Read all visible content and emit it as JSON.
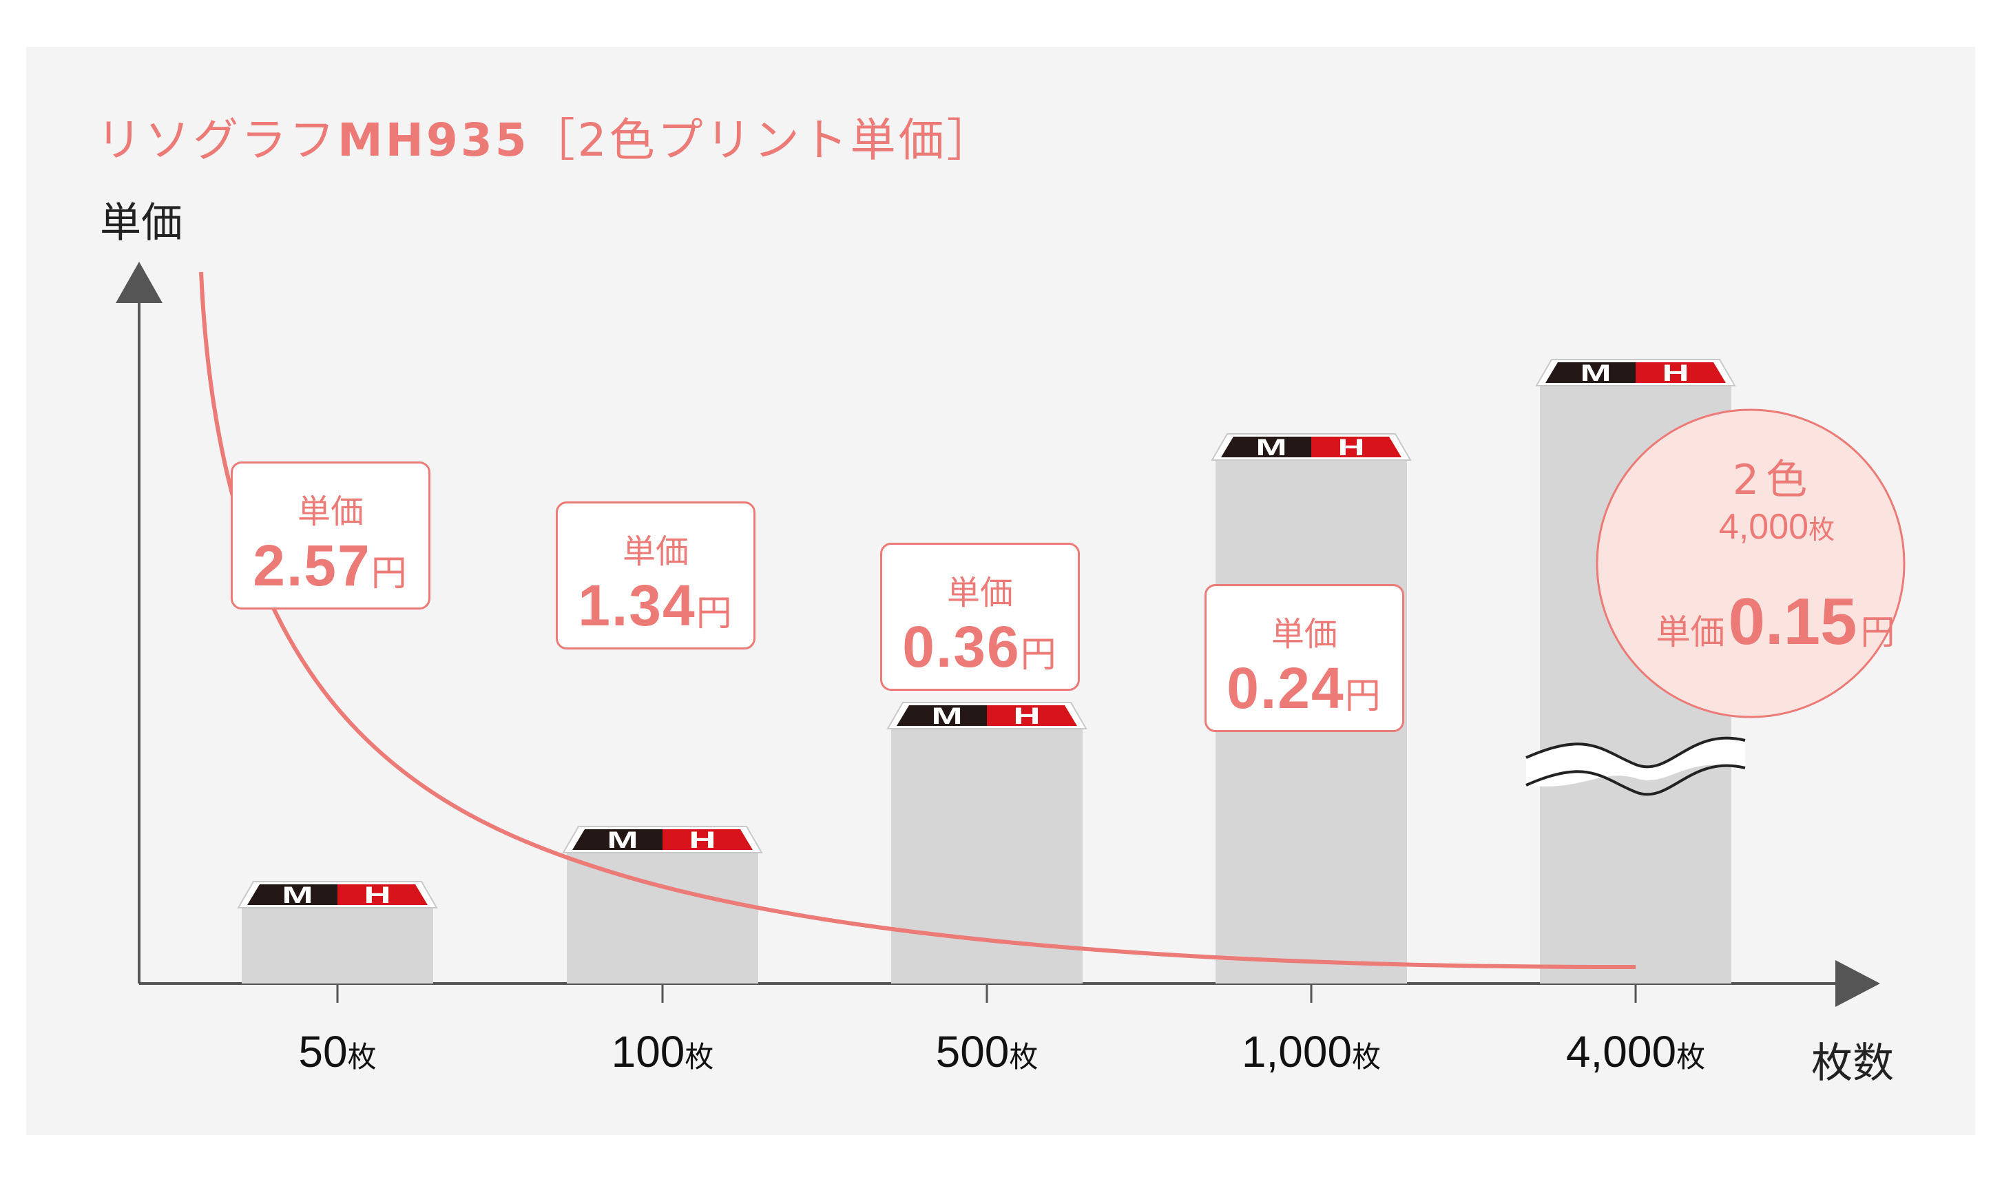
{
  "title_prefix": "リソグラフ",
  "title_model": "MH935",
  "title_suffix": "［2色プリント単価］",
  "ylabel": "単価",
  "xlabel": "枚数",
  "colors": {
    "curve": "#ec7a76",
    "accent": "#ec7a76",
    "bar": "#d6d6d7",
    "panel": "#f4f4f4",
    "badge_fill": "#fbe3e0",
    "logo_dark": "#231815",
    "logo_red": "#d7141c"
  },
  "price_label": "単価",
  "yen": "円",
  "sheet_unit": "枚",
  "logo_letters": [
    "M",
    "H"
  ],
  "chart_data": {
    "type": "bar",
    "categories": [
      "50",
      "100",
      "500",
      "1,000",
      "4,000"
    ],
    "category_unit": "枚",
    "bar_levels_relative": [
      0.11,
      0.19,
      0.37,
      0.76,
      2.5
    ],
    "broken_bar_index": 4,
    "unit_prices": [
      "2.57",
      "1.34",
      "0.36",
      "0.24",
      "0.15"
    ],
    "curve": "decreasing unit price",
    "xlabel": "枚数",
    "ylabel": "単価"
  },
  "badge": {
    "line1": "2色",
    "line2": "4,000枚",
    "label": "単価",
    "value": "0.15",
    "unit": "円"
  }
}
